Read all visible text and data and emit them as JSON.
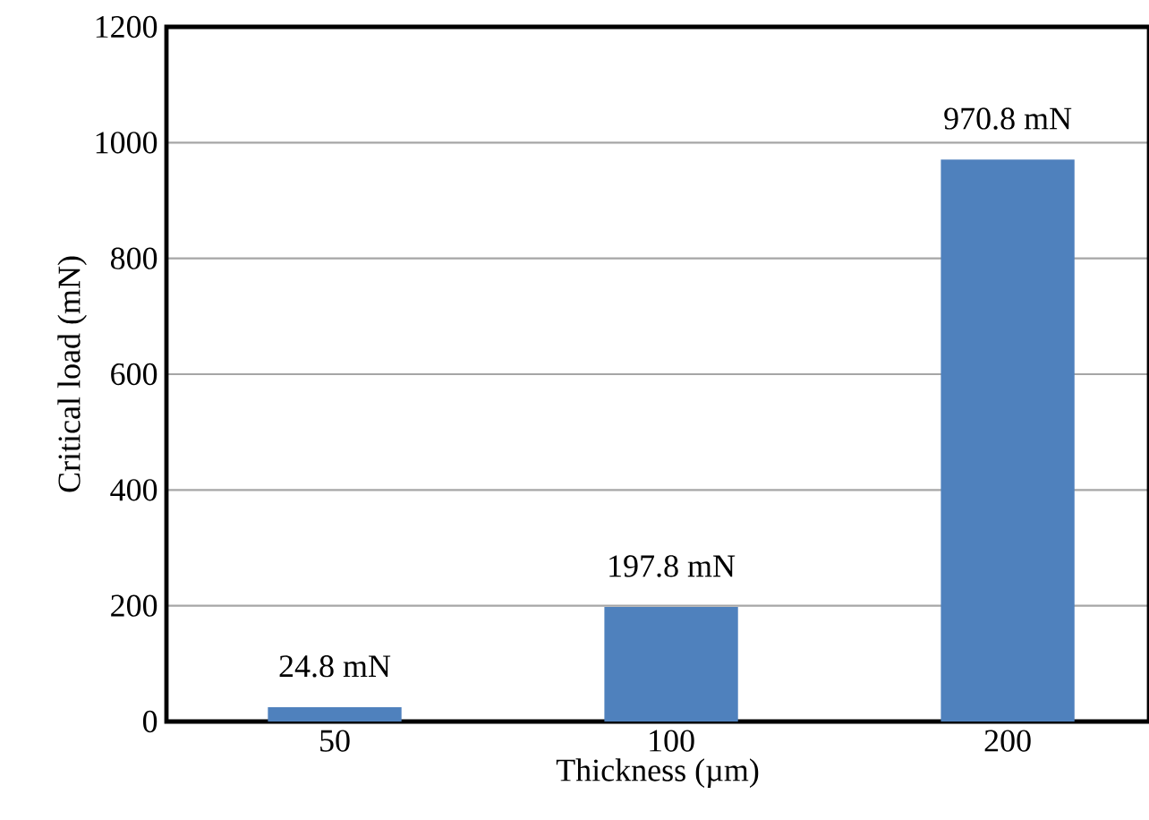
{
  "chart_data": {
    "type": "bar",
    "xlabel": "Thickness (µm)",
    "ylabel": "Critical load (mN)",
    "categories": [
      "50",
      "100",
      "200"
    ],
    "values": [
      24.8,
      197.8,
      970.8
    ],
    "color": "#4f81bd",
    "value_labels": [
      "24.8 mN",
      "197.8 mN",
      "970.8 mN"
    ],
    "ylim": [
      0,
      1200
    ],
    "yticks": [
      0,
      200,
      400,
      600,
      800,
      1000,
      1200
    ],
    "grid": "y"
  }
}
